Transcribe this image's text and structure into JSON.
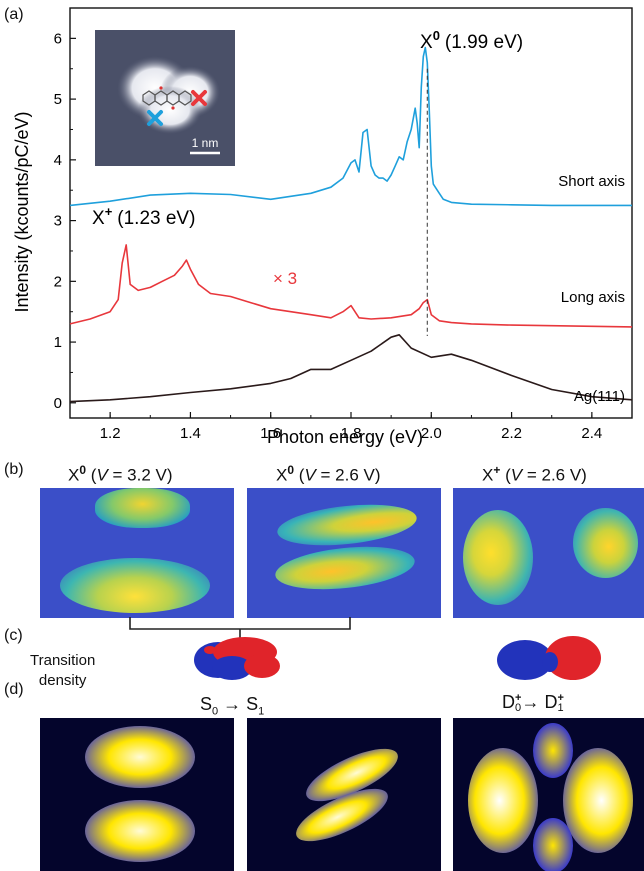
{
  "panels": {
    "a": "(a)",
    "b": "(b)",
    "c": "(c)",
    "d": "(d)"
  },
  "chart_data": {
    "type": "line",
    "xlabel": "Photon energy (eV)",
    "ylabel": "Intensity (kcounts/pC/eV)",
    "xlim": [
      1.1,
      2.5
    ],
    "ylim": [
      -0.25,
      6.5
    ],
    "xticks": [
      "1.2",
      "1.4",
      "1.6",
      "1.8",
      "2.0",
      "2.2",
      "2.4"
    ],
    "yticks": [
      "0",
      "1",
      "2",
      "3",
      "4",
      "5",
      "6"
    ],
    "series": [
      {
        "name": "Short axis",
        "color": "#1fa0dc",
        "x": [
          1.1,
          1.2,
          1.3,
          1.4,
          1.5,
          1.6,
          1.65,
          1.7,
          1.75,
          1.78,
          1.8,
          1.81,
          1.82,
          1.83,
          1.84,
          1.85,
          1.86,
          1.87,
          1.88,
          1.89,
          1.9,
          1.91,
          1.92,
          1.93,
          1.94,
          1.95,
          1.96,
          1.965,
          1.97,
          1.975,
          1.98,
          1.985,
          1.99,
          1.995,
          2.0,
          2.005,
          2.01,
          2.02,
          2.03,
          2.05,
          2.1,
          2.2,
          2.3,
          2.4,
          2.5
        ],
        "y": [
          3.25,
          3.32,
          3.42,
          3.45,
          3.43,
          3.35,
          3.4,
          3.45,
          3.55,
          3.7,
          3.95,
          4.0,
          3.8,
          4.45,
          4.5,
          3.9,
          3.75,
          3.7,
          3.7,
          3.65,
          3.75,
          3.9,
          4.05,
          4.0,
          4.3,
          4.5,
          4.85,
          4.6,
          4.2,
          5.2,
          5.7,
          5.85,
          5.6,
          4.8,
          3.9,
          3.6,
          3.55,
          3.45,
          3.35,
          3.3,
          3.27,
          3.26,
          3.25,
          3.25,
          3.25
        ]
      },
      {
        "name": "Long axis",
        "color": "#e8373c",
        "x": [
          1.1,
          1.15,
          1.2,
          1.22,
          1.23,
          1.24,
          1.25,
          1.27,
          1.3,
          1.33,
          1.36,
          1.38,
          1.39,
          1.4,
          1.42,
          1.45,
          1.5,
          1.55,
          1.6,
          1.65,
          1.7,
          1.75,
          1.78,
          1.8,
          1.82,
          1.85,
          1.9,
          1.95,
          1.97,
          1.98,
          1.99,
          2.0,
          2.02,
          2.05,
          2.1,
          2.2,
          2.3,
          2.4,
          2.5
        ],
        "y": [
          1.3,
          1.38,
          1.5,
          1.7,
          2.3,
          2.6,
          1.95,
          1.85,
          1.9,
          2.0,
          2.1,
          2.25,
          2.35,
          2.2,
          1.95,
          1.8,
          1.75,
          1.65,
          1.55,
          1.5,
          1.45,
          1.4,
          1.5,
          1.6,
          1.4,
          1.38,
          1.4,
          1.45,
          1.55,
          1.65,
          1.7,
          1.45,
          1.35,
          1.32,
          1.3,
          1.28,
          1.27,
          1.26,
          1.25
        ]
      },
      {
        "name": "Ag(111)",
        "color": "#2a1a1a",
        "x": [
          1.1,
          1.2,
          1.3,
          1.4,
          1.5,
          1.6,
          1.65,
          1.7,
          1.75,
          1.8,
          1.85,
          1.9,
          1.92,
          1.95,
          2.0,
          2.05,
          2.1,
          2.2,
          2.3,
          2.4,
          2.5
        ],
        "y": [
          0.02,
          0.05,
          0.1,
          0.17,
          0.23,
          0.32,
          0.4,
          0.55,
          0.55,
          0.7,
          0.85,
          1.08,
          1.12,
          0.9,
          0.75,
          0.8,
          0.7,
          0.45,
          0.22,
          0.1,
          0.05
        ]
      }
    ],
    "annotations": {
      "x0_label": "X",
      "x0_sup": "0",
      "x0_value": "(1.99 eV)",
      "xplus_label": "X",
      "xplus_sup": "+",
      "xplus_value": "(1.23 eV)",
      "scale": "× 3",
      "peak_line_x": 1.99
    },
    "inset": {
      "scalebar": "1 nm"
    }
  },
  "panel_b": {
    "maps": [
      {
        "base": "X",
        "sup": "0",
        "cond": "(",
        "var": "V",
        "value": " = 3.2 V)"
      },
      {
        "base": "X",
        "sup": "0",
        "cond": "(",
        "var": "V",
        "value": " = 2.6 V)"
      },
      {
        "base": "X",
        "sup": "+",
        "cond": "(",
        "var": "V",
        "value": " = 2.6 V)"
      }
    ]
  },
  "panel_c": {
    "label_line1": "Transition",
    "label_line2": "density",
    "trans1": {
      "a": "S",
      "a_sub": "0",
      "arrow": " → ",
      "b": "S",
      "b_sub": "1"
    },
    "trans2": {
      "a": "D",
      "a_sub": "0",
      "a_sup": "+",
      "arrow": "→ ",
      "b": "D",
      "b_sub": "1",
      "b_sup": "+"
    }
  }
}
